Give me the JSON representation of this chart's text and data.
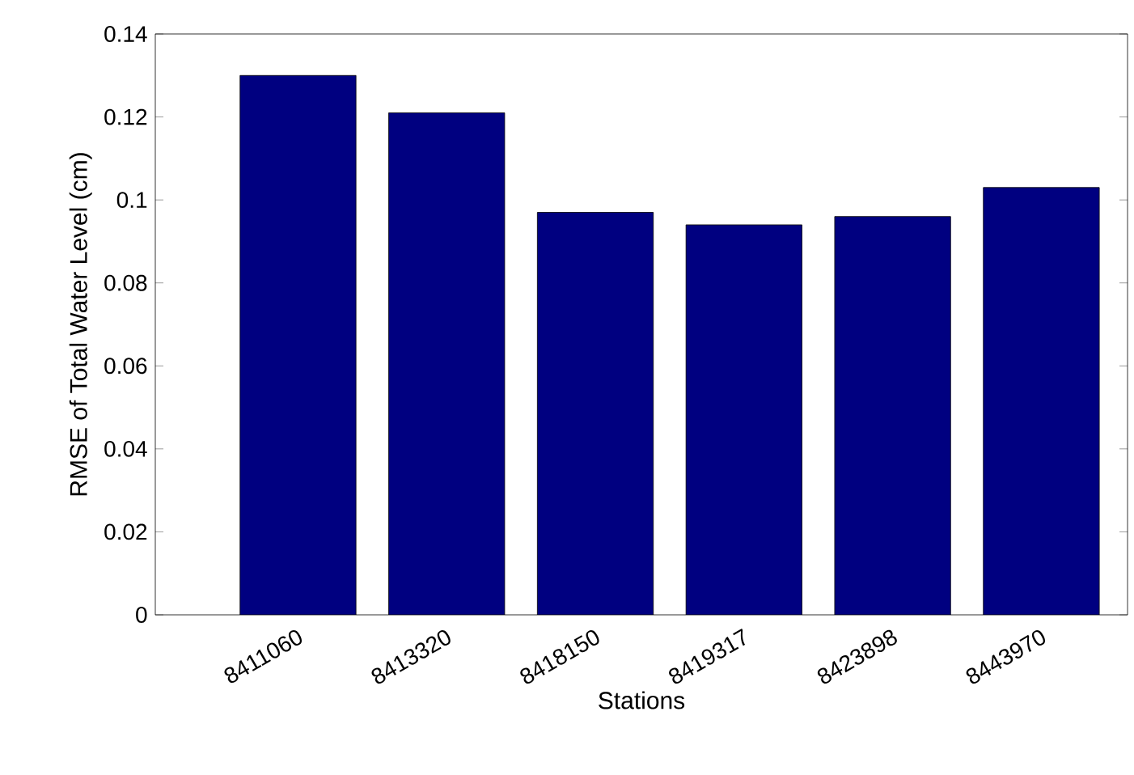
{
  "chart_data": {
    "type": "bar",
    "xlabel": "Stations",
    "ylabel": "RMSE of Total Water Level (cm)",
    "categories": [
      "8411060",
      "8413320",
      "8418150",
      "8419317",
      "8423898",
      "8443970"
    ],
    "values": [
      0.13,
      0.121,
      0.097,
      0.094,
      0.096,
      0.103
    ],
    "color": "#000080",
    "ylim": [
      0,
      0.14
    ],
    "yticks": [
      0,
      0.02,
      0.04,
      0.06,
      0.08,
      0.1,
      0.12,
      0.14
    ],
    "grid": false
  }
}
